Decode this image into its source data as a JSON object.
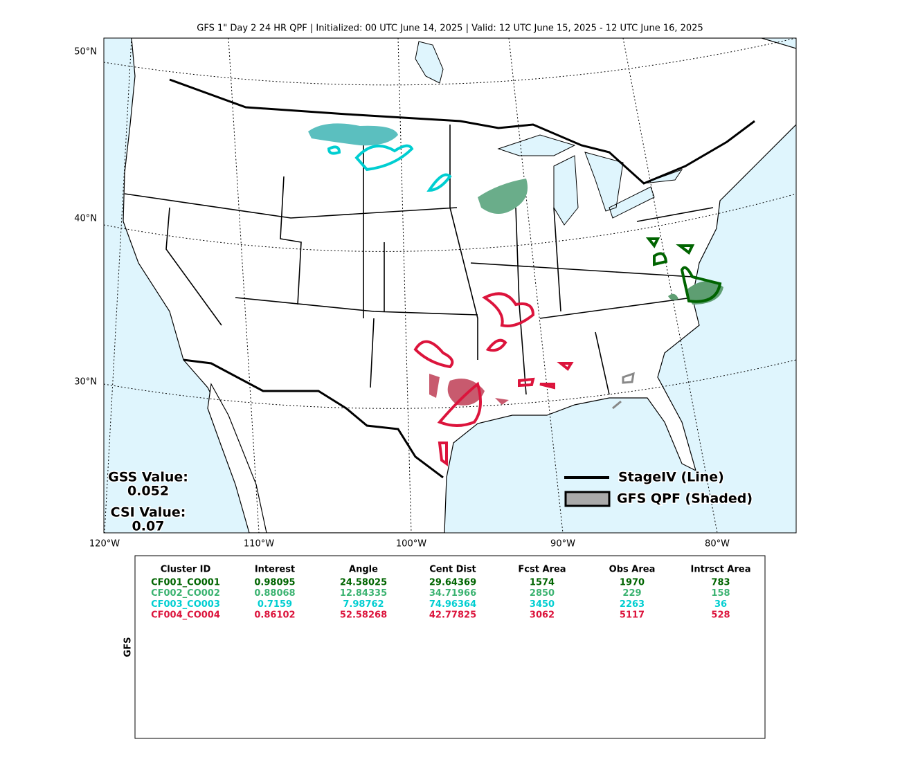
{
  "title": "GFS 1\" Day 2 24 HR QPF | Initialized: 00 UTC June 14, 2025 | Valid: 12 UTC June 15, 2025 - 12 UTC June 16, 2025",
  "map": {
    "lat_labels": [
      "50°N",
      "40°N",
      "30°N"
    ],
    "lon_labels": [
      "120°W",
      "110°W",
      "100°W",
      "90°W",
      "80°W"
    ],
    "gss_label": "GSS Value:",
    "gss_value": "0.052",
    "csi_label": "CSI Value:",
    "csi_value": "0.07",
    "legend": [
      "StageIV (Line)",
      "GFS QPF (Shaded)"
    ]
  },
  "table": {
    "side_label": "GFS",
    "columns": [
      "Cluster ID",
      "Interest",
      "Angle",
      "Cent Dist",
      "Fcst Area",
      "Obs Area",
      "Intrsct Area"
    ],
    "rows": [
      [
        "CF001_CO001",
        "0.98095",
        "24.58025",
        "29.64369",
        "1574",
        "1970",
        "783"
      ],
      [
        "CF002_CO002",
        "0.88068",
        "12.84335",
        "34.71966",
        "2850",
        "229",
        "158"
      ],
      [
        "CF003_CO003",
        "0.7159",
        "7.98762",
        "74.96364",
        "3450",
        "2263",
        "36"
      ],
      [
        "CF004_CO004",
        "0.86102",
        "52.58268",
        "42.77825",
        "3062",
        "5117",
        "528"
      ]
    ],
    "row_colors": [
      "#006400",
      "#3cb371",
      "#00ced1",
      "#dc143c"
    ]
  }
}
